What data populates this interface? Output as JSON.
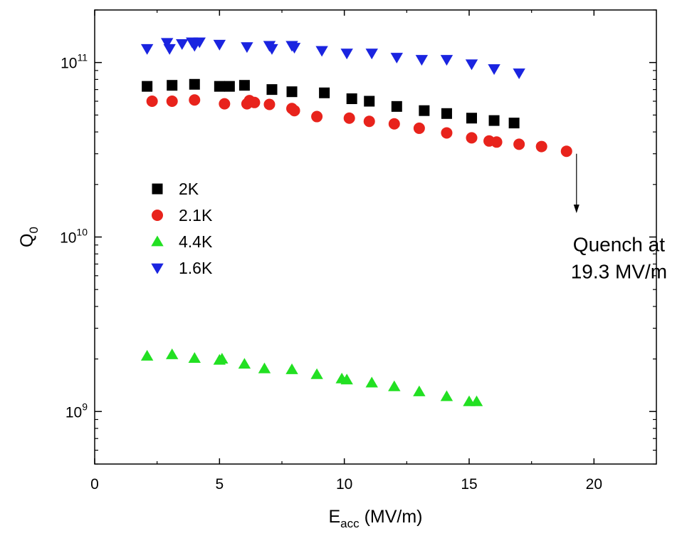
{
  "chart_data": {
    "type": "scatter",
    "title": "",
    "xlabel": {
      "main": "E",
      "sub": "acc",
      "rest": " (MV/m)"
    },
    "ylabel": {
      "main": "Q",
      "sub": "0"
    },
    "yscale": "log",
    "xlim": [
      0,
      22.5
    ],
    "ylim": [
      500000000.0,
      200000000000.0
    ],
    "xticks": [
      0,
      5,
      10,
      15,
      20
    ],
    "xtick_labels": [
      "0",
      "5",
      "10",
      "15",
      "20"
    ],
    "yticks": [
      {
        "value": 1000000000.0,
        "base": "10",
        "exp": "9"
      },
      {
        "value": 10000000000.0,
        "base": "10",
        "exp": "10"
      },
      {
        "value": 100000000000.0,
        "base": "10",
        "exp": "11"
      }
    ],
    "legend_position": "middle-left",
    "series": [
      {
        "name": "2K",
        "marker": "square",
        "color": "#000000",
        "x": [
          2.1,
          3.1,
          4.0,
          5.0,
          5.4,
          6.0,
          7.1,
          7.9,
          9.2,
          10.3,
          11.0,
          12.1,
          13.2,
          14.1,
          15.1,
          16.0,
          16.8
        ],
        "y": [
          73000000000.0,
          74000000000.0,
          75000000000.0,
          73000000000.0,
          73000000000.0,
          74000000000.0,
          70000000000.0,
          68000000000.0,
          67000000000.0,
          62000000000.0,
          60000000000.0,
          56000000000.0,
          53000000000.0,
          51000000000.0,
          48000000000.0,
          46500000000.0,
          45000000000.0
        ]
      },
      {
        "name": "2.1K",
        "marker": "circle",
        "color": "#e8231c",
        "x": [
          2.3,
          3.1,
          4.0,
          5.2,
          6.1,
          6.2,
          6.4,
          7.0,
          7.9,
          8.0,
          8.9,
          10.2,
          11.0,
          12.0,
          13.0,
          14.1,
          15.1,
          15.8,
          16.1,
          17.0,
          17.9,
          18.9
        ],
        "y": [
          60000000000.0,
          60000000000.0,
          61000000000.0,
          58000000000.0,
          58000000000.0,
          60500000000.0,
          59000000000.0,
          57500000000.0,
          54500000000.0,
          53000000000.0,
          49000000000.0,
          48000000000.0,
          46000000000.0,
          44500000000.0,
          42000000000.0,
          39500000000.0,
          37000000000.0,
          35500000000.0,
          35000000000.0,
          34000000000.0,
          33000000000.0,
          31000000000.0
        ]
      },
      {
        "name": "4.4K",
        "marker": "triangle-up",
        "color": "#22e022",
        "x": [
          2.1,
          3.1,
          4.0,
          5.0,
          5.1,
          6.0,
          6.8,
          7.9,
          8.9,
          9.9,
          10.1,
          11.1,
          12.0,
          13.0,
          14.1,
          15.0,
          15.3
        ],
        "y": [
          2080000000.0,
          2120000000.0,
          2020000000.0,
          1970000000.0,
          2000000000.0,
          1870000000.0,
          1760000000.0,
          1740000000.0,
          1630000000.0,
          1540000000.0,
          1520000000.0,
          1460000000.0,
          1390000000.0,
          1300000000.0,
          1220000000.0,
          1140000000.0,
          1140000000.0
        ]
      },
      {
        "name": "1.6K",
        "marker": "triangle-down",
        "color": "#1a24e0",
        "x": [
          2.1,
          2.9,
          3.0,
          3.5,
          3.9,
          4.0,
          4.2,
          5.0,
          6.1,
          7.0,
          7.1,
          7.9,
          8.0,
          9.1,
          10.1,
          11.1,
          12.1,
          13.1,
          14.1,
          15.1,
          16.0,
          17.0
        ],
        "y": [
          120000000000.0,
          130000000000.0,
          120000000000.0,
          128000000000.0,
          131000000000.0,
          125000000000.0,
          131000000000.0,
          127000000000.0,
          123000000000.0,
          125000000000.0,
          120000000000.0,
          125000000000.0,
          122000000000.0,
          117000000000.0,
          113000000000.0,
          113000000000.0,
          107000000000.0,
          104000000000.0,
          104000000000.0,
          98000000000.0,
          92000000000.0,
          87000000000.0
        ]
      }
    ],
    "annotations": [
      {
        "kind": "arrow",
        "x": 19.3,
        "y_from": 30000000000.0,
        "y_to": 14500000000.0
      },
      {
        "kind": "text",
        "lines": [
          "Quench at",
          "19.3 MV/m"
        ],
        "x": 21.0,
        "y": 8300000000.0
      }
    ]
  }
}
